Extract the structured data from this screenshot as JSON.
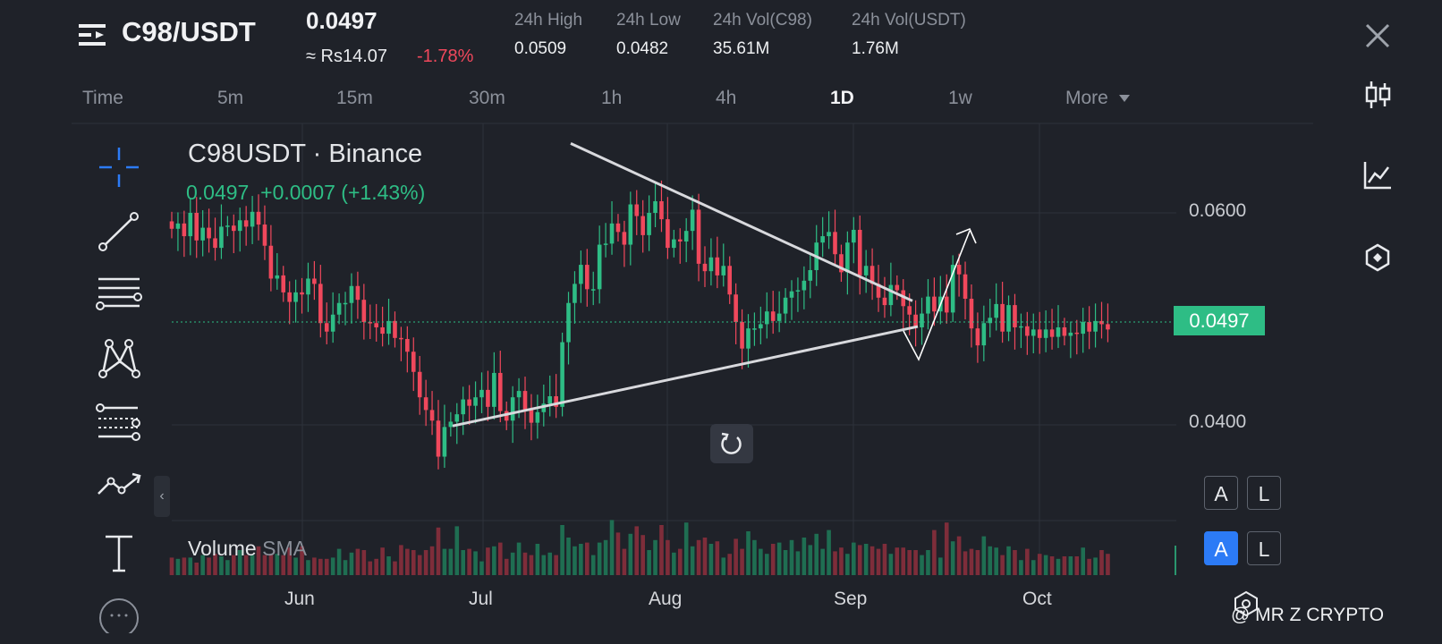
{
  "header": {
    "pair": "C98/USDT",
    "price": "0.0497",
    "approx": "≈ Rs14.07",
    "change": "-1.78%",
    "stats": [
      {
        "label": "24h High",
        "value": "0.0509"
      },
      {
        "label": "24h Low",
        "value": "0.0482"
      },
      {
        "label": "24h Vol(C98)",
        "value": "35.61M"
      },
      {
        "label": "24h Vol(USDT)",
        "value": "1.76M"
      }
    ]
  },
  "tabs": [
    "Time",
    "5m",
    "15m",
    "30m",
    "1h",
    "4h",
    "1D",
    "1w",
    "More"
  ],
  "active_tab": "1D",
  "chart": {
    "symbol": "C98USDT · Binance",
    "last": "0.0497",
    "delta": "+0.0007 (+1.43%)",
    "price_tag": "0.0497",
    "volume_label": "Volume",
    "volume_sma": "SMA",
    "price_ticks": [
      "0.0600",
      "0.0400"
    ],
    "months": [
      "Jun",
      "Jul",
      "Aug",
      "Sep",
      "Oct"
    ]
  },
  "toggles": {
    "auto": "A",
    "log": "L"
  },
  "watermark": "@ MR Z CRYPTO",
  "icons": {
    "menu": "menu-icon",
    "close": "close-icon",
    "candles": "candlestick-icon",
    "line_chart": "line-chart-icon",
    "indicator": "hexagon-indicator-icon",
    "crosshair": "crosshair-icon",
    "trendline": "trendline-icon",
    "fib": "fib-retracement-icon",
    "pattern": "pattern-icon",
    "channel": "channel-icon",
    "path": "path-icon",
    "text": "text-icon",
    "reset": "reset-icon"
  },
  "colors": {
    "up": "#2ebd85",
    "down": "#f0485c",
    "bg": "#1f2229",
    "accent": "#2c7bf6"
  },
  "chart_data": {
    "type": "candlestick",
    "title": "C98USDT · Binance",
    "interval": "1D",
    "x_ticks": [
      "Jun",
      "Jul",
      "Aug",
      "Sep",
      "Oct"
    ],
    "y_ticks": [
      0.06,
      0.04
    ],
    "ylim": [
      0.0306,
      0.0672
    ],
    "last_price": 0.0497,
    "close": [
      0.0585,
      0.059,
      0.0578,
      0.06,
      0.0574,
      0.0586,
      0.0576,
      0.0567,
      0.0587,
      0.0588,
      0.0583,
      0.0593,
      0.0587,
      0.0601,
      0.0589,
      0.0569,
      0.0538,
      0.0541,
      0.0525,
      0.0516,
      0.0525,
      0.0523,
      0.0538,
      0.0533,
      0.0496,
      0.0488,
      0.0504,
      0.0515,
      0.0515,
      0.0531,
      0.0518,
      0.0497,
      0.0496,
      0.0492,
      0.0486,
      0.0498,
      0.0482,
      0.0481,
      0.0469,
      0.045,
      0.0426,
      0.0414,
      0.0404,
      0.037,
      0.0398,
      0.0403,
      0.041,
      0.0424,
      0.0418,
      0.0426,
      0.0433,
      0.0417,
      0.0449,
      0.0413,
      0.0404,
      0.0426,
      0.0432,
      0.0414,
      0.0402,
      0.0412,
      0.042,
      0.0427,
      0.0417,
      0.0478,
      0.0515,
      0.0533,
      0.0551,
      0.0528,
      0.0528,
      0.057,
      0.0571,
      0.059,
      0.0582,
      0.057,
      0.0608,
      0.0597,
      0.0579,
      0.06,
      0.0611,
      0.0594,
      0.0567,
      0.0575,
      0.0573,
      0.0583,
      0.0603,
      0.0552,
      0.0545,
      0.0558,
      0.0541,
      0.055,
      0.0523,
      0.0497,
      0.0472,
      0.0491,
      0.0491,
      0.0495,
      0.0507,
      0.0498,
      0.0505,
      0.052,
      0.0526,
      0.0527,
      0.0536,
      0.0546,
      0.0572,
      0.0578,
      0.0582,
      0.0561,
      0.0544,
      0.0572,
      0.0584,
      0.0541,
      0.055,
      0.0533,
      0.052,
      0.0513,
      0.0532,
      0.0527,
      0.0512,
      0.0504,
      0.0492,
      0.0505,
      0.0521,
      0.0507,
      0.0521,
      0.0506,
      0.0551,
      0.0542,
      0.0519,
      0.0491,
      0.0475,
      0.0496,
      0.0501,
      0.0514,
      0.0488,
      0.0513,
      0.0492,
      0.0493,
      0.0484,
      0.049,
      0.0482,
      0.049,
      0.0483,
      0.0492,
      0.0484,
      0.0487,
      0.0486,
      0.0497,
      0.0488,
      0.0498,
      0.0495,
      0.049
    ],
    "volume_relative": [
      0.14,
      0.13,
      0.14,
      0.14,
      0.1,
      0.16,
      0.14,
      0.17,
      0.15,
      0.12,
      0.16,
      0.2,
      0.16,
      0.16,
      0.23,
      0.16,
      0.17,
      0.17,
      0.16,
      0.22,
      0.14,
      0.23,
      0.12,
      0.14,
      0.13,
      0.13,
      0.14,
      0.21,
      0.12,
      0.18,
      0.21,
      0.2,
      0.11,
      0.13,
      0.22,
      0.15,
      0.11,
      0.24,
      0.21,
      0.2,
      0.16,
      0.2,
      0.23,
      0.38,
      0.21,
      0.21,
      0.39,
      0.2,
      0.21,
      0.19,
      0.11,
      0.22,
      0.23,
      0.26,
      0.13,
      0.18,
      0.26,
      0.18,
      0.16,
      0.25,
      0.16,
      0.18,
      0.16,
      0.4,
      0.3,
      0.23,
      0.25,
      0.26,
      0.16,
      0.26,
      0.28,
      0.44,
      0.34,
      0.21,
      0.33,
      0.39,
      0.32,
      0.2,
      0.28,
      0.4,
      0.28,
      0.18,
      0.21,
      0.42,
      0.23,
      0.28,
      0.3,
      0.25,
      0.27,
      0.14,
      0.17,
      0.29,
      0.21,
      0.35,
      0.28,
      0.21,
      0.17,
      0.25,
      0.26,
      0.2,
      0.28,
      0.19,
      0.3,
      0.24,
      0.33,
      0.21,
      0.36,
      0.19,
      0.22,
      0.17,
      0.26,
      0.24,
      0.25,
      0.23,
      0.21,
      0.25,
      0.17,
      0.22,
      0.22,
      0.2,
      0.2,
      0.16,
      0.2,
      0.36,
      0.14,
      0.42,
      0.27,
      0.31,
      0.19,
      0.21,
      0.2,
      0.31,
      0.23,
      0.22,
      0.16,
      0.23,
      0.2,
      0.12,
      0.21,
      0.12,
      0.17,
      0.16,
      0.15,
      0.13,
      0.15,
      0.15,
      0.15,
      0.22,
      0.13,
      0.14,
      0.2,
      0.17
    ],
    "annotations": {
      "triangle_upper": [
        [
          0.0668,
          0.0517
        ],
        "descending resistance"
      ],
      "triangle_lower": [
        [
          0.0399,
          0.0497
        ],
        "ascending support"
      ],
      "projection": "breakout arrow up"
    }
  }
}
